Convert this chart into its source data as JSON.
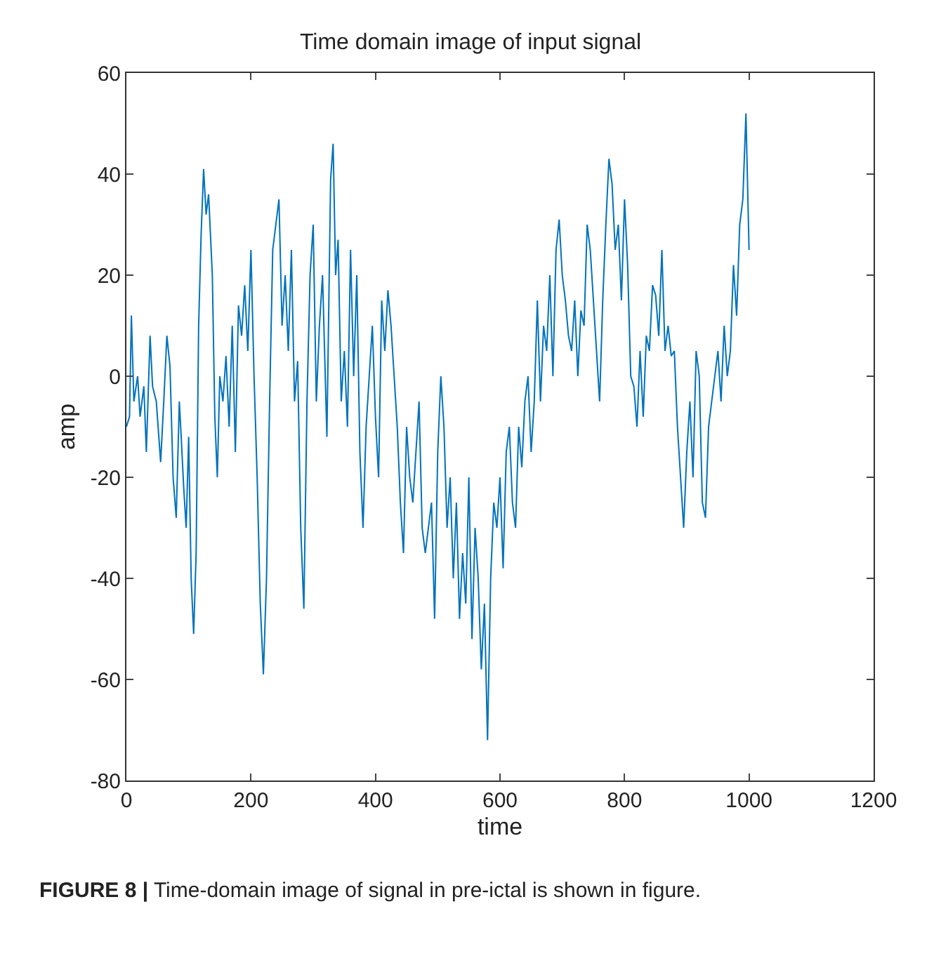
{
  "chart_data": {
    "type": "line",
    "title": "Time domain image of input signal",
    "xlabel": "time",
    "ylabel": "amp",
    "annotations": [
      "FIGURE 8 | Time-domain image of signal in pre-ictal is shown in figure."
    ],
    "xlim": [
      0,
      1200
    ],
    "xticks": [
      0,
      200,
      400,
      600,
      800,
      1000,
      1200
    ],
    "ylim": [
      -80,
      60
    ],
    "yticks": [
      -80,
      -60,
      -40,
      -20,
      0,
      20,
      40,
      60
    ],
    "x": [
      0,
      5,
      8,
      12,
      18,
      22,
      28,
      32,
      38,
      42,
      48,
      55,
      60,
      65,
      70,
      75,
      80,
      85,
      88,
      92,
      96,
      100,
      104,
      108,
      112,
      116,
      120,
      124,
      128,
      132,
      138,
      142,
      146,
      150,
      155,
      160,
      165,
      170,
      175,
      180,
      185,
      190,
      195,
      200,
      205,
      210,
      215,
      220,
      225,
      230,
      235,
      240,
      245,
      250,
      255,
      260,
      265,
      270,
      275,
      280,
      285,
      290,
      295,
      300,
      305,
      310,
      315,
      322,
      328,
      332,
      336,
      340,
      345,
      350,
      355,
      360,
      365,
      370,
      375,
      380,
      385,
      390,
      395,
      400,
      405,
      410,
      415,
      420,
      425,
      430,
      435,
      440,
      445,
      450,
      455,
      460,
      465,
      470,
      475,
      480,
      485,
      490,
      495,
      500,
      505,
      510,
      515,
      520,
      525,
      530,
      535,
      540,
      545,
      550,
      555,
      560,
      565,
      570,
      575,
      580,
      585,
      590,
      595,
      600,
      605,
      610,
      615,
      620,
      625,
      630,
      635,
      640,
      645,
      650,
      655,
      660,
      665,
      670,
      675,
      680,
      685,
      690,
      695,
      700,
      705,
      710,
      715,
      720,
      725,
      730,
      735,
      740,
      745,
      750,
      755,
      760,
      765,
      770,
      775,
      780,
      785,
      790,
      795,
      800,
      805,
      810,
      815,
      820,
      825,
      830,
      835,
      840,
      845,
      850,
      855,
      860,
      865,
      870,
      875,
      880,
      885,
      890,
      895,
      900,
      905,
      910,
      915,
      920,
      925,
      930,
      935,
      940,
      945,
      950,
      955,
      960,
      965,
      970,
      975,
      980,
      985,
      990,
      995,
      1000
    ],
    "series": [
      {
        "color": "#0072bd",
        "values": [
          -10,
          -8,
          12,
          -5,
          0,
          -8,
          -2,
          -15,
          8,
          -2,
          -5,
          -17,
          -5,
          8,
          2,
          -20,
          -28,
          -5,
          -12,
          -22,
          -30,
          -12,
          -40,
          -51,
          -35,
          10,
          28,
          41,
          32,
          36,
          20,
          -8,
          -20,
          0,
          -5,
          4,
          -10,
          10,
          -15,
          14,
          8,
          18,
          5,
          25,
          0,
          -20,
          -45,
          -59,
          -40,
          -5,
          25,
          30,
          35,
          10,
          20,
          5,
          25,
          -5,
          3,
          -30,
          -46,
          -5,
          20,
          30,
          -5,
          10,
          20,
          -12,
          39,
          46,
          20,
          27,
          -5,
          5,
          -10,
          25,
          0,
          20,
          -15,
          -30,
          -10,
          0,
          10,
          -8,
          -20,
          15,
          5,
          17,
          10,
          0,
          -10,
          -25,
          -35,
          -10,
          -20,
          -25,
          -15,
          -5,
          -30,
          -35,
          -30,
          -25,
          -48,
          -15,
          0,
          -10,
          -30,
          -20,
          -40,
          -25,
          -48,
          -35,
          -45,
          -20,
          -52,
          -30,
          -40,
          -58,
          -45,
          -72,
          -40,
          -25,
          -30,
          -20,
          -38,
          -15,
          -10,
          -25,
          -30,
          -10,
          -18,
          -5,
          0,
          -15,
          -5,
          15,
          -5,
          10,
          5,
          20,
          0,
          25,
          31,
          20,
          15,
          8,
          5,
          15,
          0,
          13,
          10,
          30,
          25,
          15,
          5,
          -5,
          15,
          30,
          43,
          38,
          25,
          30,
          15,
          35,
          22,
          0,
          -2,
          -10,
          5,
          -8,
          8,
          5,
          18,
          16,
          8,
          25,
          5,
          10,
          4,
          5,
          -10,
          -20,
          -30,
          -15,
          -5,
          -20,
          5,
          0,
          -25,
          -28,
          -10,
          -5,
          0,
          5,
          -5,
          10,
          0,
          5,
          22,
          12,
          30,
          35,
          52,
          25
        ]
      }
    ]
  }
}
